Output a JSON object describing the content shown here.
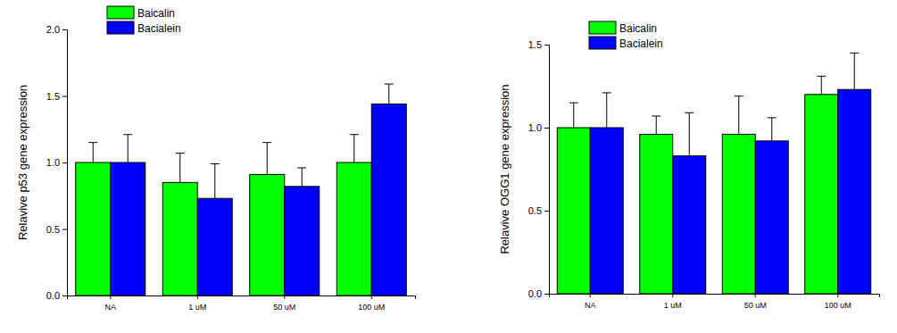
{
  "chart_data": [
    {
      "type": "bar",
      "y_label": "Relavive p53 gene expression",
      "categories": [
        "NA",
        "1 uM",
        "50 uM",
        "100 uM"
      ],
      "series": [
        {
          "name": "Baicalin",
          "color": "#00ff00",
          "values": [
            1.0,
            0.85,
            0.91,
            1.0
          ],
          "errors": [
            0.15,
            0.22,
            0.24,
            0.21
          ]
        },
        {
          "name": "Bacialein",
          "color": "#0000ff",
          "values": [
            1.0,
            0.73,
            0.82,
            1.44
          ],
          "errors": [
            0.21,
            0.26,
            0.14,
            0.15
          ]
        }
      ],
      "ylim": [
        0,
        2.0
      ],
      "yticks": [
        {
          "value": 0,
          "label": "0.0"
        },
        {
          "value": 0.5,
          "label": "0.5"
        },
        {
          "value": 1.0,
          "label": "1.0"
        },
        {
          "value": 1.5,
          "label": "1.5"
        },
        {
          "value": 2.0,
          "label": "2.0"
        }
      ],
      "legend": "upper left"
    },
    {
      "type": "bar",
      "y_label": "Relavive OGG1 gene expression",
      "categories": [
        "NA",
        "1 uM",
        "50 uM",
        "100 uM"
      ],
      "series": [
        {
          "name": "Baicalin",
          "color": "#00ff00",
          "values": [
            1.0,
            0.96,
            0.96,
            1.2
          ],
          "errors": [
            0.15,
            0.11,
            0.23,
            0.11
          ]
        },
        {
          "name": "Bacialein",
          "color": "#0000ff",
          "values": [
            1.0,
            0.83,
            0.92,
            1.23
          ],
          "errors": [
            0.21,
            0.26,
            0.14,
            0.22
          ]
        }
      ],
      "ylim": [
        0,
        1.5
      ],
      "yticks": [
        {
          "value": 0,
          "label": "0.0"
        },
        {
          "value": 0.5,
          "label": "0.5"
        },
        {
          "value": 1.0,
          "label": "1.0"
        },
        {
          "value": 1.5,
          "label": "1.5"
        }
      ],
      "legend": "upper left"
    }
  ]
}
